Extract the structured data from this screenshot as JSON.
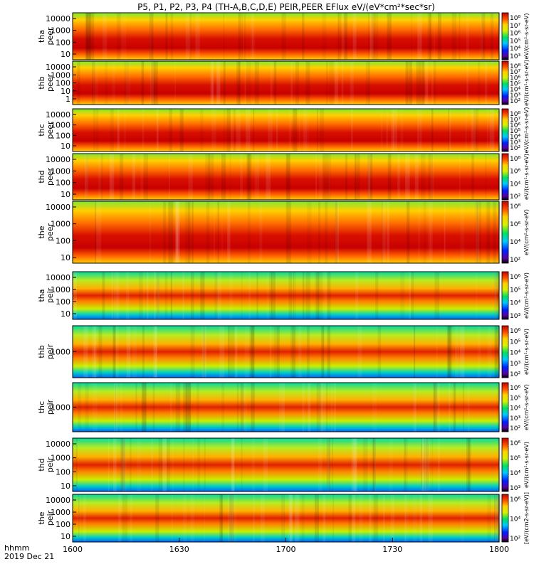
{
  "chart_data": {
    "type": "heatmap",
    "title": "P5, P1, P2, P3, P4 (TH-A,B,C,D,E) PEIR,PEER EFlux eV/(eV*cm²*sec*sr)",
    "x_tick_labels": [
      "1600",
      "1630",
      "1700",
      "1730",
      "1800"
    ],
    "x_axis_label": "hhmm",
    "date_label": "2019 Dec 21",
    "x_range": [
      "16:00",
      "18:00"
    ],
    "colorbar_label": "eV/(cm²-s-sr-eV)",
    "colorbar_label_last": "[eV/(cm2-s-sr-eV)]",
    "panels": [
      {
        "probe": "tha",
        "product": "peer",
        "label_top": "tha",
        "label_bottom": "peer",
        "y_ticks": [
          "10000",
          "1000",
          "100",
          "10"
        ],
        "cbar_ticks": [
          "10⁸",
          "10⁷",
          "10⁶",
          "10⁵",
          "10⁴",
          "10³"
        ]
      },
      {
        "probe": "thb",
        "product": "peer",
        "label_top": "thb",
        "label_bottom": "peer",
        "y_ticks": [
          "10000",
          "1000",
          "100",
          "10",
          "1"
        ],
        "cbar_ticks": [
          "10⁸",
          "10⁷",
          "10⁶",
          "10⁵",
          "10⁴",
          "10³",
          "10²"
        ]
      },
      {
        "probe": "thc",
        "product": "peer",
        "label_top": "thc",
        "label_bottom": "peer",
        "y_ticks": [
          "10000",
          "1000",
          "100",
          "10"
        ],
        "cbar_ticks": [
          "10⁸",
          "10⁷",
          "10⁶",
          "10⁵",
          "10⁴",
          "10³",
          "10²"
        ]
      },
      {
        "probe": "thd",
        "product": "peer",
        "label_top": "thd",
        "label_bottom": "peer",
        "y_ticks": [
          "10000",
          "1000",
          "100",
          "10"
        ],
        "cbar_ticks": [
          "10⁸",
          "10⁶",
          "10⁴",
          "10²"
        ]
      },
      {
        "probe": "the",
        "product": "peer",
        "label_top": "the",
        "label_bottom": "peer",
        "y_ticks": [
          "10000",
          "1000",
          "100",
          "10"
        ],
        "cbar_ticks": [
          "10⁸",
          "10⁶",
          "10⁴",
          "10²"
        ]
      },
      {
        "probe": "tha",
        "product": "peir",
        "label_top": "tha",
        "label_bottom": "peir",
        "y_ticks": [
          "10000",
          "1000",
          "100",
          "10"
        ],
        "cbar_ticks": [
          "10⁶",
          "10⁵",
          "10⁴",
          "10³"
        ]
      },
      {
        "probe": "thb",
        "product": "peir",
        "label_top": "thb",
        "label_bottom": "peir",
        "y_ticks": [
          "1000"
        ],
        "cbar_ticks": [
          "10⁶",
          "10⁵",
          "10⁴",
          "10³",
          "10²"
        ]
      },
      {
        "probe": "thc",
        "product": "peir",
        "label_top": "thc",
        "label_bottom": "peir",
        "y_ticks": [
          "1000"
        ],
        "cbar_ticks": [
          "10⁶",
          "10⁵",
          "10⁴",
          "10³",
          "10²"
        ]
      },
      {
        "probe": "thd",
        "product": "peir",
        "label_top": "thd",
        "label_bottom": "peir",
        "y_ticks": [
          "10000",
          "1000",
          "100",
          "10"
        ],
        "cbar_ticks": [
          "10⁶",
          "10⁵",
          "10⁴",
          "10³"
        ]
      },
      {
        "probe": "the",
        "product": "peir",
        "label_top": "the",
        "label_bottom": "peir",
        "y_ticks": [
          "10000",
          "1000",
          "100",
          "10"
        ],
        "cbar_ticks": [
          "10⁶",
          "10⁴",
          "10²"
        ]
      }
    ]
  }
}
